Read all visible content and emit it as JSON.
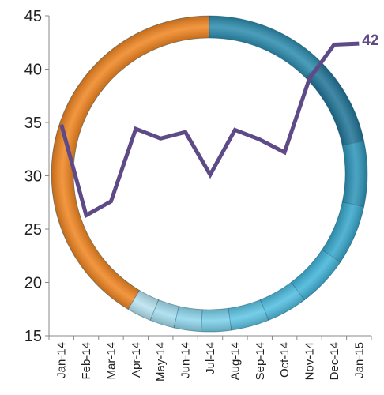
{
  "chart_data": {
    "type": "line",
    "categories": [
      "Jan-14",
      "Feb-14",
      "Mar-14",
      "Apr-14",
      "May-14",
      "Jun-14",
      "Jul-14",
      "Aug-14",
      "Sep-14",
      "Oct-14",
      "Nov-14",
      "Dec-14",
      "Jan-15"
    ],
    "series": [
      {
        "color": "#5e4a86",
        "values": [
          34.8,
          26.3,
          27.6,
          34.4,
          33.5,
          34.1,
          30.1,
          34.3,
          33.4,
          32.2,
          39.1,
          42.3,
          42.4
        ],
        "value_labels": [
          null,
          null,
          null,
          null,
          null,
          null,
          null,
          null,
          null,
          null,
          null,
          null,
          "42"
        ]
      }
    ],
    "ylim": [
      15,
      45
    ],
    "yticks": [
      15,
      20,
      25,
      30,
      35,
      40,
      45
    ]
  }
}
